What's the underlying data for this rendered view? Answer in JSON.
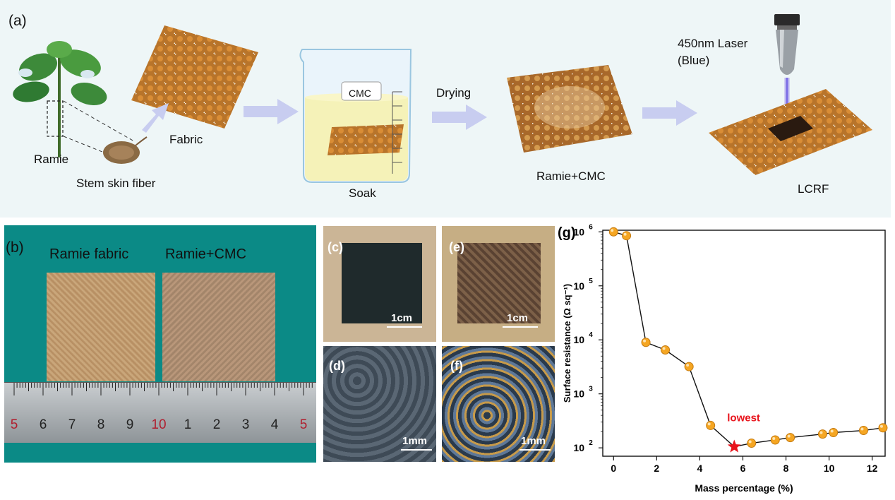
{
  "panel_a": {
    "label": "(a)",
    "ramie": "Ramie",
    "stem_skin_fiber": "Stem skin fiber",
    "fabric": "Fabric",
    "cmc": "CMC",
    "soak": "Soak",
    "drying": "Drying",
    "ramie_cmc": "Ramie+CMC",
    "laser_line1": "450nm Laser",
    "laser_line2": "(Blue)",
    "lcrf": "LCRF"
  },
  "panel_b": {
    "label": "(b)",
    "ramie_fabric": "Ramie fabric",
    "ramie_cmc": "Ramie+CMC",
    "ruler_numbers": [
      "5",
      "6",
      "7",
      "8",
      "9",
      "10",
      "1",
      "2",
      "3",
      "4",
      "5"
    ]
  },
  "panel_c": {
    "label": "(c)",
    "scale": "1cm"
  },
  "panel_d": {
    "label": "(d)",
    "scale": "1mm"
  },
  "panel_e": {
    "label": "(e)",
    "scale": "1cm"
  },
  "panel_f": {
    "label": "(f)",
    "scale": "1mm"
  },
  "chart_data": {
    "type": "line",
    "panel_label": "(g)",
    "xlabel": "Mass percentage (%)",
    "ylabel": "Surface resistance (Ω sq⁻¹)",
    "xlim": [
      -0.5,
      12.6
    ],
    "ylim": [
      70,
      1000000
    ],
    "yscale": "log",
    "xticks": [
      0,
      2,
      4,
      6,
      8,
      10,
      12
    ],
    "yticks": [
      100,
      1000,
      10000,
      100000,
      1000000
    ],
    "ytick_labels": [
      [
        "10",
        "2"
      ],
      [
        "10",
        "3"
      ],
      [
        "10",
        "4"
      ],
      [
        "10",
        "5"
      ],
      [
        "10",
        "6"
      ]
    ],
    "series": [
      {
        "x": [
          0,
          0.6,
          1.5,
          2.4,
          3.5,
          4.5,
          5.6,
          6.4,
          7.5,
          8.2,
          9.7,
          10.2,
          11.6,
          12.5
        ],
        "y": [
          1000000,
          850000,
          9000,
          6500,
          3200,
          260,
          105,
          122,
          140,
          155,
          180,
          192,
          210,
          235
        ],
        "marker_color": "#f5a623",
        "highlight_index": 6,
        "highlight_color": "#e8141c"
      }
    ],
    "annotation": {
      "text": "lowest",
      "color": "#e8141c",
      "x": 5.6
    }
  }
}
